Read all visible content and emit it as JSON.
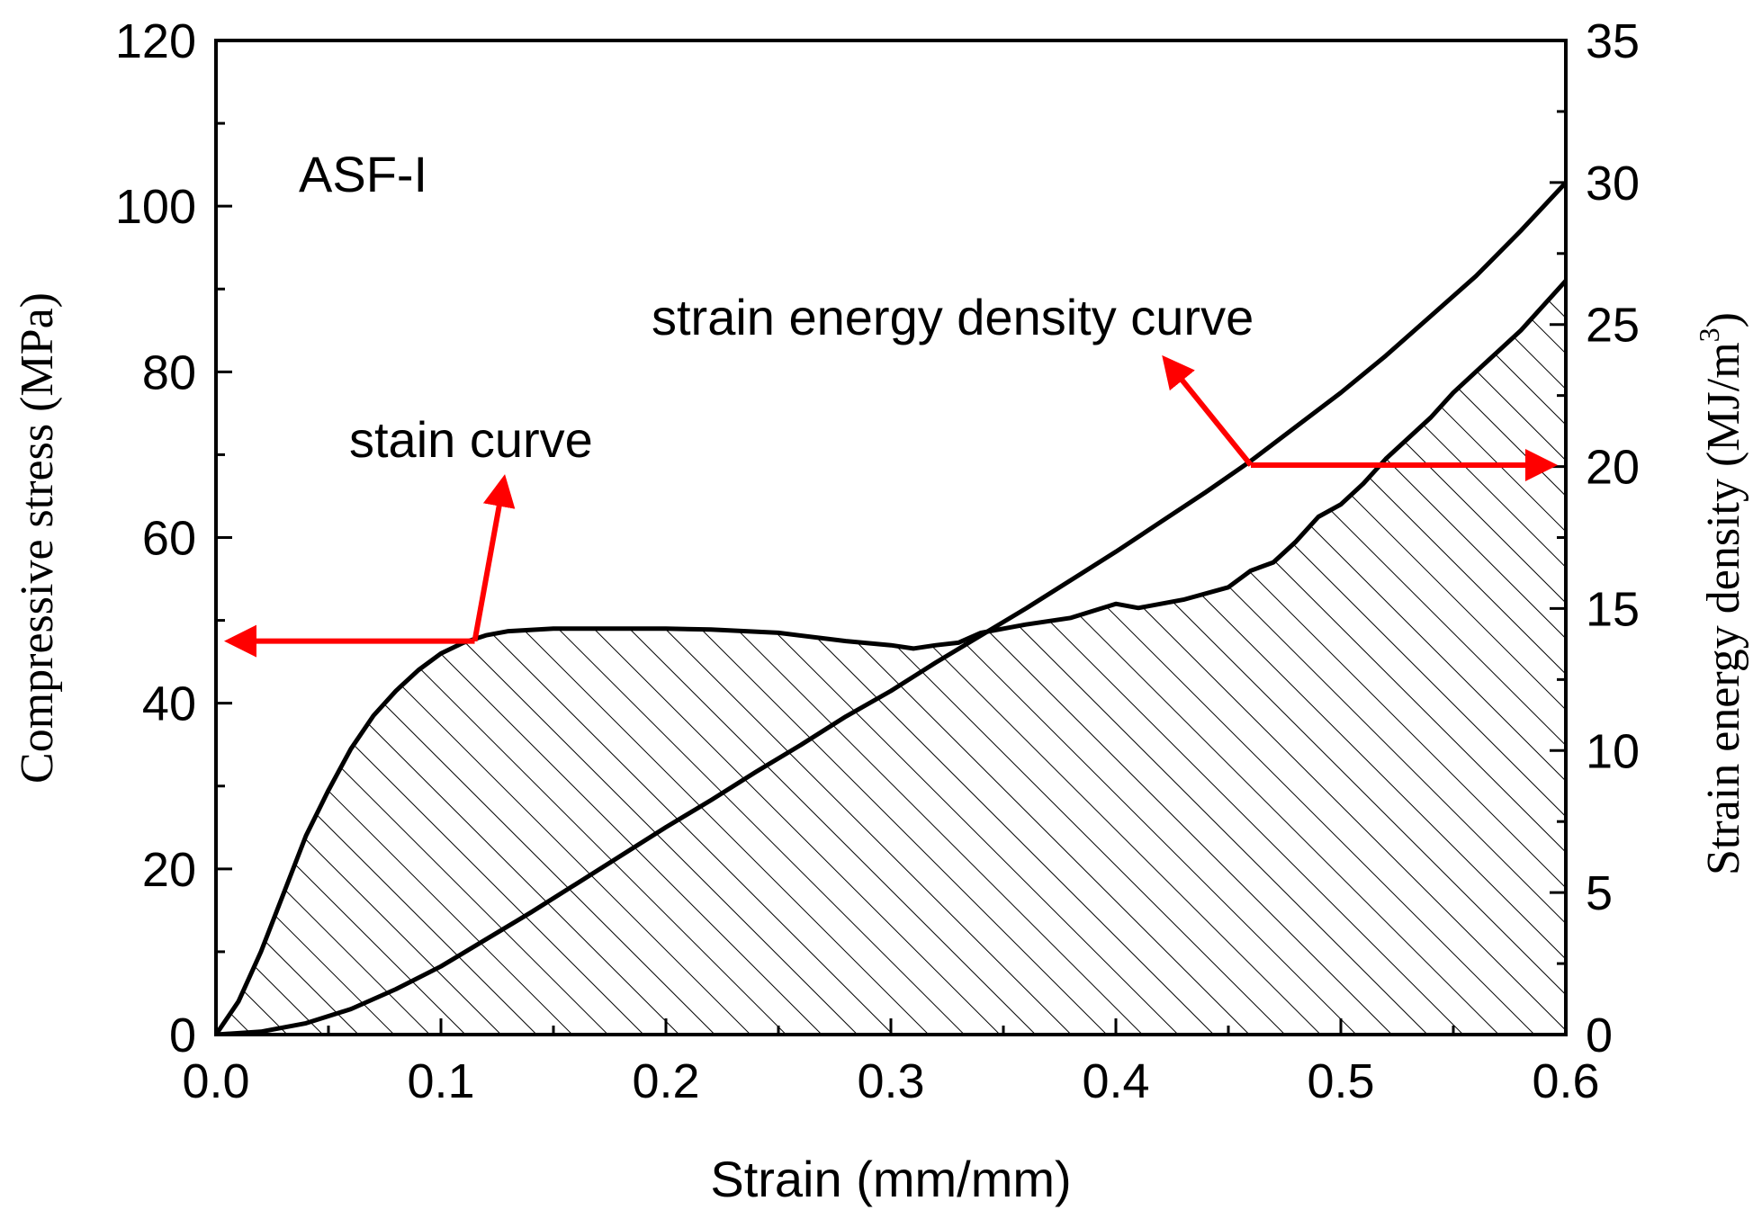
{
  "chart_data": {
    "type": "line",
    "panel_label": "ASF-I",
    "xlabel": "Strain (mm/mm)",
    "ylabel_left": "Compressive stress (MPa)",
    "ylabel_right_main": "Strain energy density (MJ/m",
    "ylabel_right_sup": "3",
    "ylabel_right_close": ")",
    "xlim": [
      0.0,
      0.6
    ],
    "ylim_left": [
      0,
      120
    ],
    "ylim_right": [
      0,
      35
    ],
    "x_ticks": [
      "0.0",
      "0.1",
      "0.2",
      "0.3",
      "0.4",
      "0.5",
      "0.6"
    ],
    "y_left_ticks": [
      "0",
      "20",
      "40",
      "60",
      "80",
      "100",
      "120"
    ],
    "y_right_ticks": [
      "0",
      "5",
      "10",
      "15",
      "20",
      "25",
      "30",
      "35"
    ],
    "annotations": {
      "stress_curve": "stain curve",
      "energy_curve": "strain energy density curve"
    },
    "arrow_color": "#ff0000",
    "series": [
      {
        "name": "stain curve",
        "axis": "left",
        "hatched_area": true,
        "points": [
          [
            0,
            0
          ],
          [
            0.01,
            4
          ],
          [
            0.02,
            10
          ],
          [
            0.03,
            17
          ],
          [
            0.04,
            24
          ],
          [
            0.05,
            29.5
          ],
          [
            0.06,
            34.5
          ],
          [
            0.07,
            38.5
          ],
          [
            0.08,
            41.5
          ],
          [
            0.09,
            44
          ],
          [
            0.1,
            46
          ],
          [
            0.11,
            47.3
          ],
          [
            0.12,
            48.2
          ],
          [
            0.13,
            48.7
          ],
          [
            0.15,
            49
          ],
          [
            0.17,
            49
          ],
          [
            0.2,
            49
          ],
          [
            0.22,
            48.9
          ],
          [
            0.25,
            48.5
          ],
          [
            0.28,
            47.5
          ],
          [
            0.3,
            47
          ],
          [
            0.31,
            46.6
          ],
          [
            0.32,
            47
          ],
          [
            0.33,
            47.3
          ],
          [
            0.34,
            48.5
          ],
          [
            0.36,
            49.5
          ],
          [
            0.38,
            50.3
          ],
          [
            0.4,
            52
          ],
          [
            0.41,
            51.5
          ],
          [
            0.43,
            52.5
          ],
          [
            0.45,
            54
          ],
          [
            0.46,
            56
          ],
          [
            0.47,
            57
          ],
          [
            0.48,
            59.5
          ],
          [
            0.49,
            62.5
          ],
          [
            0.5,
            64
          ],
          [
            0.51,
            66.5
          ],
          [
            0.52,
            69.5
          ],
          [
            0.53,
            72
          ],
          [
            0.54,
            74.5
          ],
          [
            0.55,
            77.5
          ],
          [
            0.56,
            80
          ],
          [
            0.57,
            82.5
          ],
          [
            0.58,
            85
          ],
          [
            0.59,
            88
          ],
          [
            0.6,
            91
          ]
        ]
      },
      {
        "name": "strain energy density curve",
        "axis": "right",
        "hatched_area": false,
        "points": [
          [
            0,
            0
          ],
          [
            0.02,
            0.1
          ],
          [
            0.04,
            0.4
          ],
          [
            0.06,
            0.9
          ],
          [
            0.08,
            1.6
          ],
          [
            0.1,
            2.4
          ],
          [
            0.12,
            3.35
          ],
          [
            0.14,
            4.3
          ],
          [
            0.16,
            5.3
          ],
          [
            0.18,
            6.3
          ],
          [
            0.2,
            7.3
          ],
          [
            0.22,
            8.25
          ],
          [
            0.24,
            9.25
          ],
          [
            0.26,
            10.2
          ],
          [
            0.28,
            11.2
          ],
          [
            0.3,
            12.1
          ],
          [
            0.32,
            13.1
          ],
          [
            0.34,
            14.05
          ],
          [
            0.36,
            15.0
          ],
          [
            0.38,
            16.0
          ],
          [
            0.4,
            17.0
          ],
          [
            0.42,
            18.05
          ],
          [
            0.44,
            19.1
          ],
          [
            0.46,
            20.2
          ],
          [
            0.48,
            21.4
          ],
          [
            0.5,
            22.6
          ],
          [
            0.52,
            23.9
          ],
          [
            0.54,
            25.3
          ],
          [
            0.56,
            26.7
          ],
          [
            0.58,
            28.3
          ],
          [
            0.6,
            30.0
          ]
        ]
      }
    ]
  }
}
